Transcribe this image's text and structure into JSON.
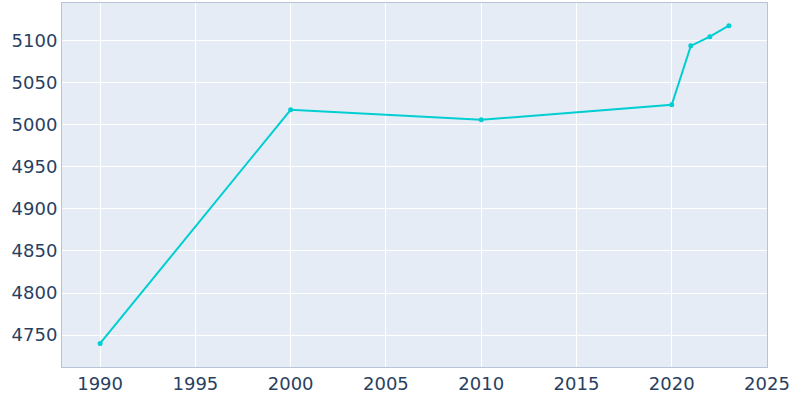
{
  "chart_data": {
    "type": "line",
    "x": [
      1990,
      2000,
      2010,
      2020,
      2021,
      2022,
      2023
    ],
    "values": [
      4740,
      5018,
      5006,
      5024,
      5094,
      5105,
      5118
    ],
    "color": "#00ced1",
    "marker": "circle",
    "xlim": [
      1988,
      2025
    ],
    "xticks": [
      1990,
      1995,
      2000,
      2005,
      2010,
      2015,
      2020,
      2025
    ],
    "ylim": [
      4712,
      5145
    ],
    "yticks": [
      4750,
      4800,
      4850,
      4900,
      4950,
      5000,
      5050,
      5100
    ],
    "grid": true
  }
}
